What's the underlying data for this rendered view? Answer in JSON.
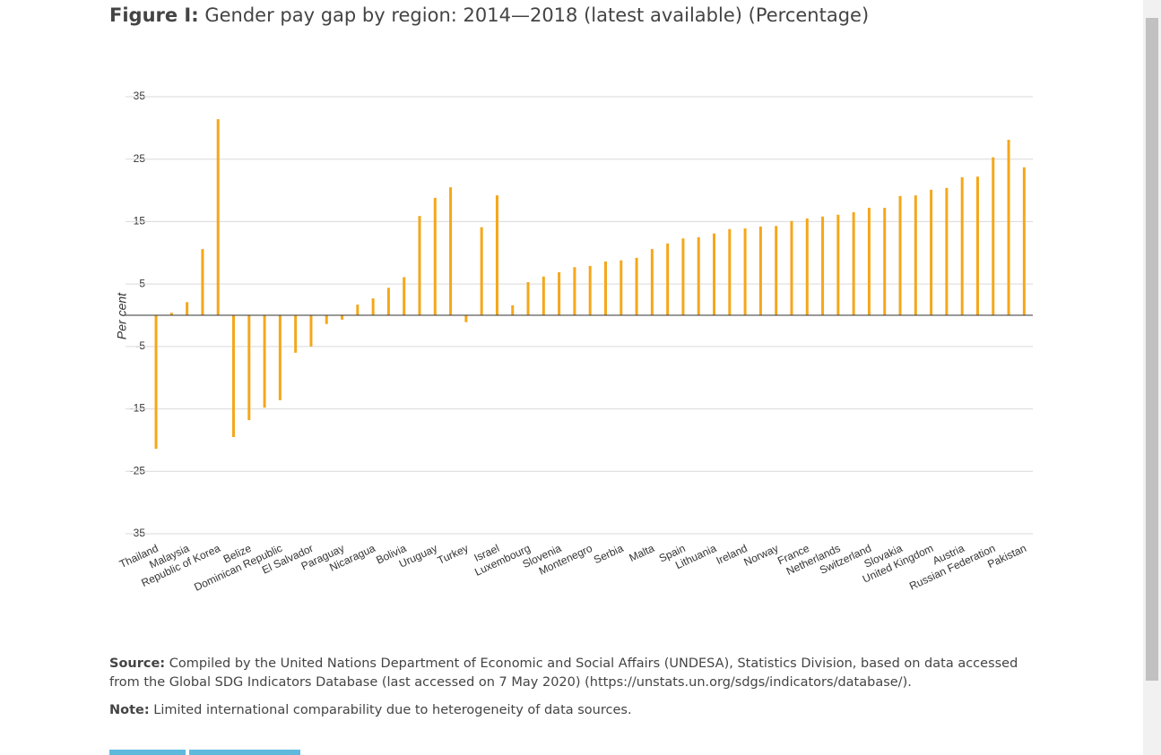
{
  "figure_label": "Figure I:",
  "chart_data": {
    "type": "bar",
    "title": "Gender pay gap by region: 2014—2018 (latest available) (Percentage)",
    "y_label": "Per cent",
    "categories": [
      "Thailand",
      null,
      "Malaysia",
      null,
      "Republic of Korea",
      null,
      "Belize",
      null,
      "Dominican Republic",
      null,
      "El Salvador",
      null,
      "Paraguay",
      null,
      "Nicaragua",
      null,
      "Bolivia",
      null,
      "Uruguay",
      null,
      "Turkey",
      null,
      "Israel",
      null,
      "Luxembourg",
      null,
      "Slovenia",
      null,
      "Montenegro",
      null,
      "Serbia",
      null,
      "Malta",
      null,
      "Spain",
      null,
      "Lithuania",
      null,
      "Ireland",
      null,
      "Norway",
      null,
      "France",
      null,
      "Netherlands",
      null,
      "Switzerland",
      null,
      "Slovakia",
      null,
      "United Kingdom",
      null,
      "Austria",
      null,
      "Russian Federation",
      null,
      "Pakistan"
    ],
    "values": [
      -21.4,
      0.4,
      2.1,
      10.6,
      31.4,
      -19.5,
      -16.8,
      -14.8,
      -13.6,
      -6.0,
      -5.0,
      -1.4,
      -0.7,
      1.7,
      2.7,
      4.4,
      6.1,
      15.9,
      18.8,
      20.5,
      -1.1,
      14.1,
      19.2,
      1.6,
      5.3,
      6.2,
      6.9,
      7.7,
      7.9,
      8.6,
      8.8,
      9.2,
      10.6,
      11.5,
      12.3,
      12.5,
      13.1,
      13.8,
      13.9,
      14.2,
      14.3,
      15.1,
      15.5,
      15.8,
      16.1,
      16.5,
      17.2,
      17.2,
      19.1,
      19.2,
      20.1,
      20.4,
      22.1,
      22.2,
      25.3,
      28.1,
      23.7
    ],
    "color": "#f5a71a",
    "ylim": [
      -35,
      35
    ],
    "yticks": [
      -35,
      -25,
      -15,
      -5,
      5,
      15,
      25,
      35
    ],
    "grid": true
  },
  "source": {
    "label": "Source:",
    "text": "Compiled by the United Nations Department of Economic and Social Affairs (UNDESA), Statistics Division, based on data accessed from the Global SDG Indicators Database (last accessed on 7 May 2020) (https://unstats.un.org/sdgs/indicators/database/)."
  },
  "note": {
    "label": "Note:",
    "text": "Limited international comparability due to heterogeneity of data sources."
  }
}
